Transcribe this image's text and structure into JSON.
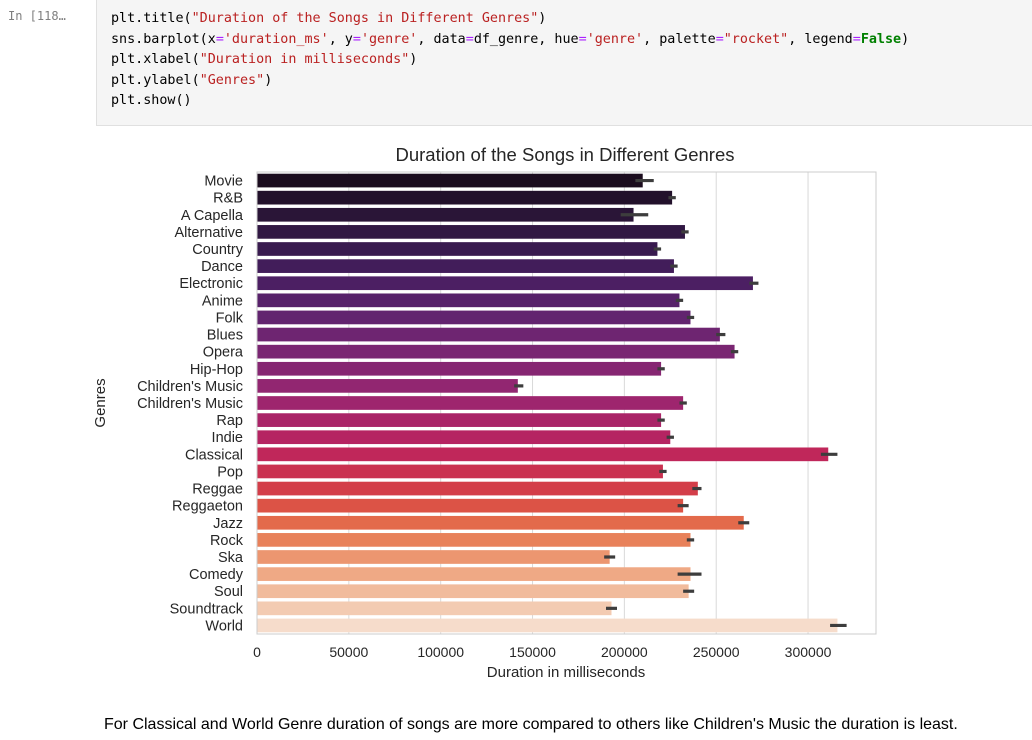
{
  "cell": {
    "prompt": "In [118…"
  },
  "code_lines": [
    [
      [
        "plt.title(",
        "p"
      ],
      [
        "\"Duration of the Songs in Different Genres\"",
        "s"
      ],
      [
        ")",
        "p"
      ]
    ],
    [
      [
        "sns.barplot(x",
        "p"
      ],
      [
        "=",
        "o"
      ],
      [
        "'duration_ms'",
        "s"
      ],
      [
        ", y",
        "p"
      ],
      [
        "=",
        "o"
      ],
      [
        "'genre'",
        "s"
      ],
      [
        ", data",
        "p"
      ],
      [
        "=",
        "o"
      ],
      [
        "df_genre, hue",
        "p"
      ],
      [
        "=",
        "o"
      ],
      [
        "'genre'",
        "s"
      ],
      [
        ", palette",
        "p"
      ],
      [
        "=",
        "o"
      ],
      [
        "\"rocket\"",
        "s"
      ],
      [
        ", legend",
        "p"
      ],
      [
        "=",
        "o"
      ],
      [
        "False",
        "k"
      ],
      [
        ")",
        "p"
      ]
    ],
    [
      [
        "plt.xlabel(",
        "p"
      ],
      [
        "\"Duration in milliseconds\"",
        "s"
      ],
      [
        ")",
        "p"
      ]
    ],
    [
      [
        "plt.ylabel(",
        "p"
      ],
      [
        "\"Genres\"",
        "s"
      ],
      [
        ")",
        "p"
      ]
    ],
    [
      [
        "plt.show()",
        "p"
      ]
    ]
  ],
  "chart_data": {
    "type": "bar",
    "orientation": "horizontal",
    "title": "Duration of the Songs in Different Genres",
    "xlabel": "Duration in milliseconds",
    "ylabel": "Genres",
    "xlim": [
      0,
      337000
    ],
    "xticks": [
      0,
      50000,
      100000,
      150000,
      200000,
      250000,
      300000
    ],
    "xtick_labels": [
      "0",
      "50000",
      "100000",
      "150000",
      "200000",
      "250000",
      "300000"
    ],
    "grid": "x",
    "categories": [
      "Movie",
      "R&B",
      "A Capella",
      "Alternative",
      "Country",
      "Dance",
      "Electronic",
      "Anime",
      "Folk",
      "Blues",
      "Opera",
      "Hip-Hop",
      "Children's Music",
      "Children's Music",
      "Rap",
      "Indie",
      "Classical",
      "Pop",
      "Reggae",
      "Reggaeton",
      "Jazz",
      "Rock",
      "Ska",
      "Comedy",
      "Soul",
      "Soundtrack",
      "World"
    ],
    "values": [
      210000,
      226000,
      205000,
      233000,
      218000,
      227000,
      270000,
      230000,
      236000,
      252000,
      260000,
      220000,
      142000,
      232000,
      220000,
      225000,
      311000,
      221000,
      240000,
      232000,
      265000,
      236000,
      192000,
      236000,
      235000,
      193000,
      316000
    ],
    "error_low": [
      206000,
      224000,
      198000,
      231000,
      216000,
      225000,
      268000,
      228000,
      234000,
      250000,
      258000,
      218000,
      140000,
      230000,
      218000,
      223000,
      307000,
      219000,
      237000,
      229000,
      262000,
      234000,
      189000,
      229000,
      232000,
      190000,
      312000
    ],
    "error_high": [
      216000,
      228000,
      213000,
      235000,
      220000,
      229000,
      273000,
      232000,
      238000,
      255000,
      262000,
      222000,
      145000,
      234000,
      222000,
      227000,
      316000,
      223000,
      242000,
      235000,
      268000,
      238000,
      195000,
      242000,
      238000,
      196000,
      321000
    ],
    "colors": [
      "#1b0c1e",
      "#22112b",
      "#2a1537",
      "#311843",
      "#391b4f",
      "#421d5a",
      "#4c1f63",
      "#57216a",
      "#62246f",
      "#6e2571",
      "#7a2672",
      "#862672",
      "#922671",
      "#9e256e",
      "#aa2468",
      "#b52462",
      "#c0275a",
      "#ca3150",
      "#d33e49",
      "#dc5346",
      "#e36a4b",
      "#e8815a",
      "#ec9670",
      "#efa985",
      "#f1bb9c",
      "#f3cbb2",
      "#f6dccb"
    ]
  },
  "markdown": {
    "text": "For Classical and World Genre duration of songs are more compared to others like Children's Music the duration is least."
  }
}
